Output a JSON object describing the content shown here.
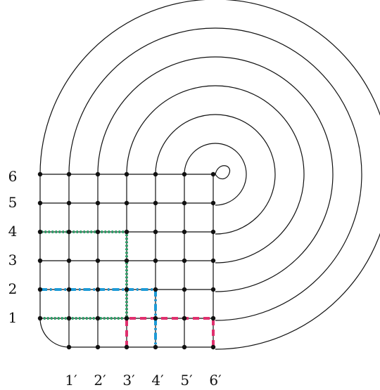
{
  "row_labels": [
    "1",
    "2",
    "3",
    "4",
    "5",
    "6"
  ],
  "column_labels": [
    "1′",
    "2′",
    "3′",
    "4′",
    "5′",
    "6′"
  ],
  "colors": {
    "grid": "#111111",
    "dot": "#111111",
    "path_green": "#2fa36b",
    "path_blue": "#1e9bd7",
    "path_magenta": "#e0306e"
  },
  "paths": [
    {
      "color_key": "path_green",
      "style": "dotted",
      "points": [
        [
          0,
          1
        ],
        [
          3,
          1
        ],
        [
          3,
          4
        ],
        [
          0,
          4
        ]
      ]
    },
    {
      "color_key": "path_blue",
      "style": "dash-dot",
      "points": [
        [
          0,
          2
        ],
        [
          4,
          2
        ],
        [
          4,
          0
        ]
      ]
    },
    {
      "color_key": "path_magenta",
      "style": "dashed",
      "points": [
        [
          3,
          0
        ],
        [
          3,
          1
        ],
        [
          6,
          1
        ],
        [
          6,
          0
        ]
      ]
    }
  ]
}
